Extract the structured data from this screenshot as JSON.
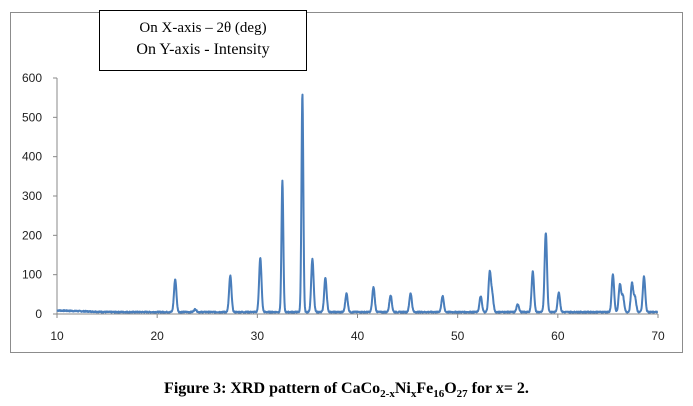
{
  "chart_data": {
    "type": "line",
    "title": "",
    "xlabel": "2θ (deg)",
    "ylabel": "Intensity",
    "xlim": [
      10,
      70
    ],
    "ylim": [
      0,
      600
    ],
    "xticks": [
      10,
      20,
      30,
      40,
      50,
      60,
      70
    ],
    "yticks": [
      0,
      100,
      200,
      300,
      400,
      500,
      600
    ],
    "grid": false,
    "series_color": "#4a7ebb",
    "baseline": 5,
    "peaks": [
      {
        "two_theta": 21.8,
        "intensity": 88
      },
      {
        "two_theta": 23.8,
        "intensity": 12
      },
      {
        "two_theta": 27.3,
        "intensity": 97
      },
      {
        "two_theta": 30.3,
        "intensity": 142
      },
      {
        "two_theta": 32.5,
        "intensity": 338
      },
      {
        "two_theta": 34.5,
        "intensity": 560
      },
      {
        "two_theta": 35.5,
        "intensity": 140
      },
      {
        "two_theta": 36.8,
        "intensity": 92
      },
      {
        "two_theta": 38.9,
        "intensity": 52
      },
      {
        "two_theta": 41.6,
        "intensity": 68
      },
      {
        "two_theta": 43.3,
        "intensity": 48
      },
      {
        "two_theta": 45.3,
        "intensity": 53
      },
      {
        "two_theta": 48.5,
        "intensity": 45
      },
      {
        "two_theta": 52.3,
        "intensity": 45
      },
      {
        "two_theta": 53.2,
        "intensity": 104
      },
      {
        "two_theta": 53.45,
        "intensity": 48
      },
      {
        "two_theta": 56.0,
        "intensity": 25
      },
      {
        "two_theta": 57.5,
        "intensity": 108
      },
      {
        "two_theta": 58.8,
        "intensity": 207
      },
      {
        "two_theta": 60.1,
        "intensity": 55
      },
      {
        "two_theta": 65.5,
        "intensity": 100
      },
      {
        "two_theta": 66.2,
        "intensity": 75
      },
      {
        "two_theta": 66.5,
        "intensity": 45
      },
      {
        "two_theta": 67.4,
        "intensity": 78
      },
      {
        "two_theta": 67.7,
        "intensity": 42
      },
      {
        "two_theta": 68.6,
        "intensity": 95
      }
    ],
    "legend": {
      "placement": "top-left",
      "line1": "On X-axis – 2θ (deg)",
      "line2": "On Y-axis - Intensity"
    }
  },
  "caption": {
    "prefix": "Figure 3: XRD pattern of CaCo",
    "sub1": "2-x",
    "ni": "Ni",
    "sub2": "x",
    "fe": "Fe",
    "sub3": "16",
    "o": "O",
    "sub4": "27",
    "suffix": " for x= 2."
  }
}
